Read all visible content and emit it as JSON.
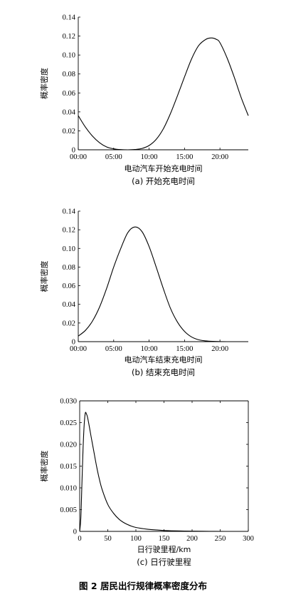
{
  "figure_title": "图 2  居民出行规律概率密度分布",
  "chart_data": [
    {
      "type": "line",
      "xlabel": "电动汽车开始充电时间",
      "ylabel": "概率密度",
      "caption": "(a) 开始充电时间",
      "xlim": [
        0,
        24
      ],
      "ylim": [
        0,
        0.14
      ],
      "x_ticks": [
        0,
        5,
        10,
        15,
        20
      ],
      "x_tick_labels": [
        "00:00",
        "05:00",
        "10:00",
        "15:00",
        "20:00"
      ],
      "y_ticks": [
        0,
        0.02,
        0.04,
        0.06,
        0.08,
        0.1,
        0.12,
        0.14
      ],
      "y_tick_labels": [
        "0",
        "0.02",
        "0.04",
        "0.06",
        "0.08",
        "0.10",
        "0.12",
        "0.14"
      ],
      "series": [
        {
          "x": [
            0,
            1,
            2,
            3,
            4,
            5,
            6,
            7,
            8,
            9,
            10,
            11,
            12,
            13,
            14,
            15,
            16,
            17,
            18,
            18.8,
            19.5,
            20,
            21,
            22,
            23,
            24
          ],
          "values": [
            0.036,
            0.024,
            0.0145,
            0.0075,
            0.003,
            0.001,
            0.0002,
            0.0,
            0.0003,
            0.0014,
            0.0045,
            0.011,
            0.022,
            0.038,
            0.057,
            0.077,
            0.096,
            0.11,
            0.1165,
            0.118,
            0.1165,
            0.113,
            0.097,
            0.077,
            0.055,
            0.036
          ]
        }
      ]
    },
    {
      "type": "line",
      "xlabel": "电动汽车结束充电时间",
      "ylabel": "概率密度",
      "caption": "(b) 结束充电时间",
      "xlim": [
        0,
        24
      ],
      "ylim": [
        0,
        0.14
      ],
      "x_ticks": [
        0,
        5,
        10,
        15,
        20
      ],
      "x_tick_labels": [
        "00:00",
        "05:00",
        "10:00",
        "15:00",
        "20:00"
      ],
      "y_ticks": [
        0,
        0.02,
        0.04,
        0.06,
        0.08,
        0.1,
        0.12,
        0.14
      ],
      "y_tick_labels": [
        "0",
        "0.02",
        "0.04",
        "0.06",
        "0.08",
        "0.10",
        "0.12",
        "0.14"
      ],
      "series": [
        {
          "x": [
            0,
            1,
            2,
            3,
            4,
            5,
            6,
            7,
            8,
            9,
            10,
            11,
            12,
            13,
            14,
            15,
            16,
            17,
            18,
            19,
            20,
            21,
            22,
            23,
            24
          ],
          "values": [
            0.006,
            0.012,
            0.022,
            0.037,
            0.057,
            0.08,
            0.1,
            0.117,
            0.123,
            0.118,
            0.102,
            0.08,
            0.057,
            0.036,
            0.021,
            0.011,
            0.005,
            0.002,
            0.0008,
            0.0003,
            0.0001,
            0.0,
            0.0,
            0.0,
            0.0
          ]
        }
      ]
    },
    {
      "type": "line",
      "xlabel": "日行驶里程/km",
      "ylabel": "概率密度",
      "caption": "(c) 日行驶里程",
      "xlim": [
        0,
        300
      ],
      "ylim": [
        0,
        0.03
      ],
      "x_ticks": [
        0,
        50,
        100,
        150,
        200,
        250,
        300
      ],
      "x_tick_labels": [
        "0",
        "50",
        "100",
        "150",
        "200",
        "250",
        "300"
      ],
      "y_ticks": [
        0,
        0.005,
        0.01,
        0.015,
        0.02,
        0.025,
        0.03
      ],
      "y_tick_labels": [
        "0",
        "0.005",
        "0.010",
        "0.015",
        "0.020",
        "0.025",
        "0.030"
      ],
      "series": [
        {
          "x": [
            0,
            2,
            4,
            6,
            8,
            10,
            12,
            14,
            17,
            20,
            25,
            30,
            35,
            40,
            50,
            60,
            70,
            80,
            90,
            100,
            120,
            140,
            160,
            180,
            200,
            230,
            260,
            300
          ],
          "values": [
            0,
            0.003,
            0.011,
            0.019,
            0.0245,
            0.0272,
            0.027,
            0.0262,
            0.0242,
            0.022,
            0.0185,
            0.015,
            0.012,
            0.0096,
            0.0062,
            0.0042,
            0.0028,
            0.0019,
            0.0013,
            0.0009,
            0.0005,
            0.0003,
            0.00015,
            0.0001,
            5e-05,
            2e-05,
            0.0,
            0.0
          ]
        }
      ]
    }
  ]
}
